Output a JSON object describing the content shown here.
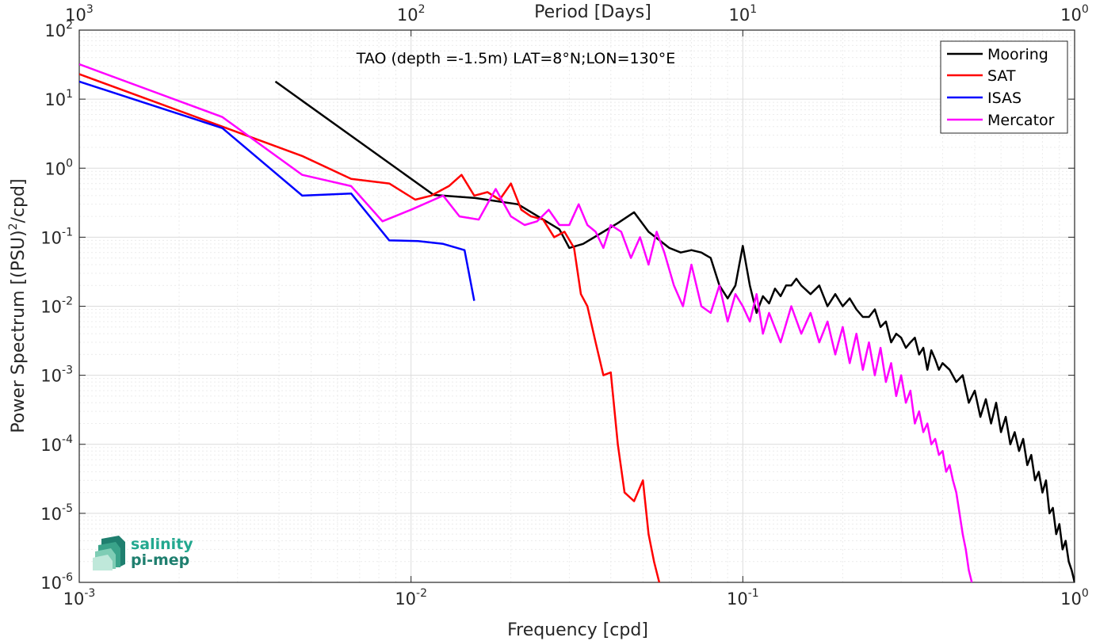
{
  "chart_data": {
    "type": "line",
    "title": "TAO (depth =-1.5m) LAT=8°N;LON=130°E",
    "xlabel": "Frequency [cpd]",
    "ylabel_prefix": "Power Spectrum [(PSU)",
    "ylabel_sup": "2",
    "ylabel_suffix": "/cpd]",
    "top_xlabel": "Period [Days]",
    "x_scale": "log",
    "y_scale": "log",
    "xlim": [
      0.001,
      1
    ],
    "ylim": [
      1e-06,
      100
    ],
    "grid": true,
    "legend_position": "top-right",
    "x_ticks": [
      {
        "base": "10",
        "exp": "-3"
      },
      {
        "base": "10",
        "exp": "-2"
      },
      {
        "base": "10",
        "exp": "-1"
      },
      {
        "base": "10",
        "exp": "0"
      }
    ],
    "top_ticks": [
      {
        "base": "10",
        "exp": "3"
      },
      {
        "base": "10",
        "exp": "2"
      },
      {
        "base": "10",
        "exp": "1"
      },
      {
        "base": "10",
        "exp": "0"
      }
    ],
    "y_ticks": [
      {
        "base": "10",
        "exp": "-6"
      },
      {
        "base": "10",
        "exp": "-5"
      },
      {
        "base": "10",
        "exp": "-4"
      },
      {
        "base": "10",
        "exp": "-3"
      },
      {
        "base": "10",
        "exp": "-2"
      },
      {
        "base": "10",
        "exp": "-1"
      },
      {
        "base": "10",
        "exp": "0"
      },
      {
        "base": "10",
        "exp": "1"
      },
      {
        "base": "10",
        "exp": "2"
      }
    ],
    "series": [
      {
        "name": "Mooring",
        "color": "#000000",
        "x": [
          0.0039,
          0.0117,
          0.0156,
          0.021,
          0.028,
          0.03,
          0.033,
          0.038,
          0.042,
          0.047,
          0.052,
          0.06,
          0.065,
          0.07,
          0.075,
          0.08,
          0.085,
          0.09,
          0.095,
          0.1,
          0.105,
          0.11,
          0.115,
          0.12,
          0.125,
          0.13,
          0.135,
          0.14,
          0.145,
          0.15,
          0.16,
          0.17,
          0.18,
          0.19,
          0.2,
          0.21,
          0.22,
          0.23,
          0.24,
          0.25,
          0.26,
          0.27,
          0.28,
          0.29,
          0.3,
          0.31,
          0.32,
          0.33,
          0.34,
          0.35,
          0.36,
          0.37,
          0.38,
          0.39,
          0.4,
          0.42,
          0.44,
          0.46,
          0.48,
          0.5,
          0.52,
          0.54,
          0.56,
          0.58,
          0.6,
          0.62,
          0.64,
          0.66,
          0.68,
          0.7,
          0.72,
          0.74,
          0.76,
          0.78,
          0.8,
          0.82,
          0.84,
          0.86,
          0.88,
          0.9,
          0.92,
          0.94,
          0.96,
          0.98,
          1.0
        ],
        "y": [
          18,
          0.41,
          0.37,
          0.3,
          0.13,
          0.07,
          0.08,
          0.12,
          0.16,
          0.23,
          0.12,
          0.07,
          0.06,
          0.065,
          0.06,
          0.05,
          0.02,
          0.013,
          0.02,
          0.075,
          0.02,
          0.008,
          0.014,
          0.011,
          0.018,
          0.014,
          0.02,
          0.02,
          0.025,
          0.02,
          0.015,
          0.02,
          0.01,
          0.015,
          0.01,
          0.013,
          0.009,
          0.007,
          0.007,
          0.009,
          0.005,
          0.006,
          0.003,
          0.004,
          0.0035,
          0.0025,
          0.003,
          0.0035,
          0.002,
          0.0025,
          0.0012,
          0.0023,
          0.0017,
          0.0012,
          0.0015,
          0.0012,
          0.0008,
          0.001,
          0.0004,
          0.0006,
          0.00025,
          0.00045,
          0.0002,
          0.0004,
          0.00015,
          0.00025,
          0.0001,
          0.00015,
          8e-05,
          0.00012,
          5e-05,
          7e-05,
          3e-05,
          4e-05,
          2e-05,
          3e-05,
          1e-05,
          1.2e-05,
          5e-06,
          7e-06,
          3e-06,
          4e-06,
          2e-06,
          1.5e-06,
          1e-06
        ]
      },
      {
        "name": "SAT",
        "color": "#ff0000",
        "x": [
          0.001,
          0.0027,
          0.0047,
          0.0066,
          0.0086,
          0.0103,
          0.0115,
          0.013,
          0.0142,
          0.0155,
          0.017,
          0.0185,
          0.02,
          0.0215,
          0.023,
          0.025,
          0.027,
          0.029,
          0.031,
          0.0325,
          0.034,
          0.036,
          0.038,
          0.04,
          0.042,
          0.044,
          0.047,
          0.05,
          0.052,
          0.054,
          0.056,
          0.059
        ],
        "y": [
          23,
          4,
          1.5,
          0.7,
          0.6,
          0.35,
          0.4,
          0.55,
          0.8,
          0.4,
          0.45,
          0.35,
          0.6,
          0.25,
          0.2,
          0.18,
          0.1,
          0.12,
          0.07,
          0.015,
          0.01,
          0.003,
          0.001,
          0.0011,
          0.0001,
          2e-05,
          1.5e-05,
          3e-05,
          5e-06,
          2e-06,
          1e-06,
          6e-07
        ]
      },
      {
        "name": "ISAS",
        "color": "#0000ff",
        "x": [
          0.001,
          0.0027,
          0.0047,
          0.0066,
          0.0086,
          0.0105,
          0.0125,
          0.0145,
          0.0155
        ],
        "y": [
          18,
          3.8,
          0.4,
          0.43,
          0.09,
          0.088,
          0.08,
          0.065,
          0.012
        ]
      },
      {
        "name": "Mercator",
        "color": "#ff00ff",
        "x": [
          0.001,
          0.0027,
          0.0047,
          0.0066,
          0.0082,
          0.01,
          0.0125,
          0.014,
          0.016,
          0.018,
          0.02,
          0.022,
          0.024,
          0.026,
          0.028,
          0.03,
          0.032,
          0.034,
          0.036,
          0.038,
          0.04,
          0.043,
          0.046,
          0.049,
          0.052,
          0.055,
          0.058,
          0.062,
          0.066,
          0.07,
          0.075,
          0.08,
          0.085,
          0.09,
          0.095,
          0.1,
          0.105,
          0.11,
          0.115,
          0.12,
          0.13,
          0.14,
          0.15,
          0.16,
          0.17,
          0.18,
          0.19,
          0.2,
          0.21,
          0.22,
          0.23,
          0.24,
          0.25,
          0.26,
          0.27,
          0.28,
          0.29,
          0.3,
          0.31,
          0.32,
          0.33,
          0.34,
          0.35,
          0.36,
          0.37,
          0.38,
          0.39,
          0.4,
          0.41,
          0.42,
          0.43,
          0.44,
          0.45,
          0.46,
          0.47,
          0.48,
          0.49
        ],
        "y": [
          32,
          5.5,
          0.8,
          0.55,
          0.17,
          0.25,
          0.4,
          0.2,
          0.18,
          0.5,
          0.2,
          0.15,
          0.17,
          0.25,
          0.15,
          0.15,
          0.3,
          0.15,
          0.12,
          0.07,
          0.15,
          0.12,
          0.05,
          0.1,
          0.04,
          0.12,
          0.06,
          0.02,
          0.01,
          0.04,
          0.01,
          0.008,
          0.02,
          0.006,
          0.015,
          0.01,
          0.006,
          0.015,
          0.004,
          0.008,
          0.003,
          0.01,
          0.004,
          0.008,
          0.003,
          0.006,
          0.002,
          0.005,
          0.0015,
          0.004,
          0.0012,
          0.003,
          0.001,
          0.0025,
          0.0008,
          0.0015,
          0.0005,
          0.001,
          0.0004,
          0.0006,
          0.0002,
          0.0003,
          0.00015,
          0.0002,
          0.0001,
          0.00012,
          7e-05,
          8e-05,
          4e-05,
          5e-05,
          3e-05,
          2e-05,
          1e-05,
          5e-06,
          3e-06,
          1.5e-06,
          1e-06
        ]
      }
    ]
  },
  "logo": {
    "line1": "salinity",
    "line2": "pi-mep"
  }
}
